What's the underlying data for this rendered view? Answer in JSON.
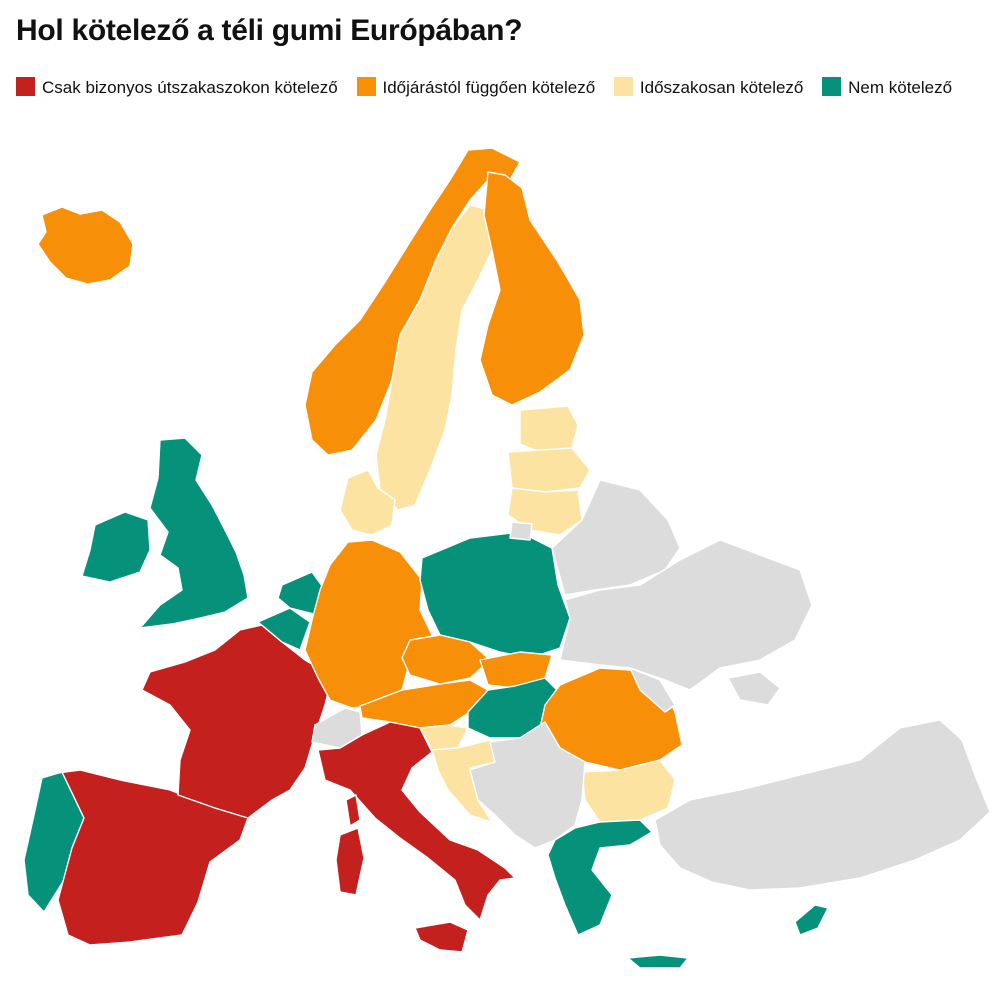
{
  "title": "Hol kötelező a téli gumi Európában?",
  "legend": [
    {
      "label": "Csak bizonyos útszakaszokon kötelező",
      "color": "#c4201e"
    },
    {
      "label": "Időjárástól függően kötelező",
      "color": "#f78f08"
    },
    {
      "label": "Időszakosan kötelező",
      "color": "#fde3a1"
    },
    {
      "label": "Nem kötelező",
      "color": "#06927a"
    }
  ],
  "colors": {
    "no_data": "#dcdcdc",
    "background": "#ffffff"
  }
}
